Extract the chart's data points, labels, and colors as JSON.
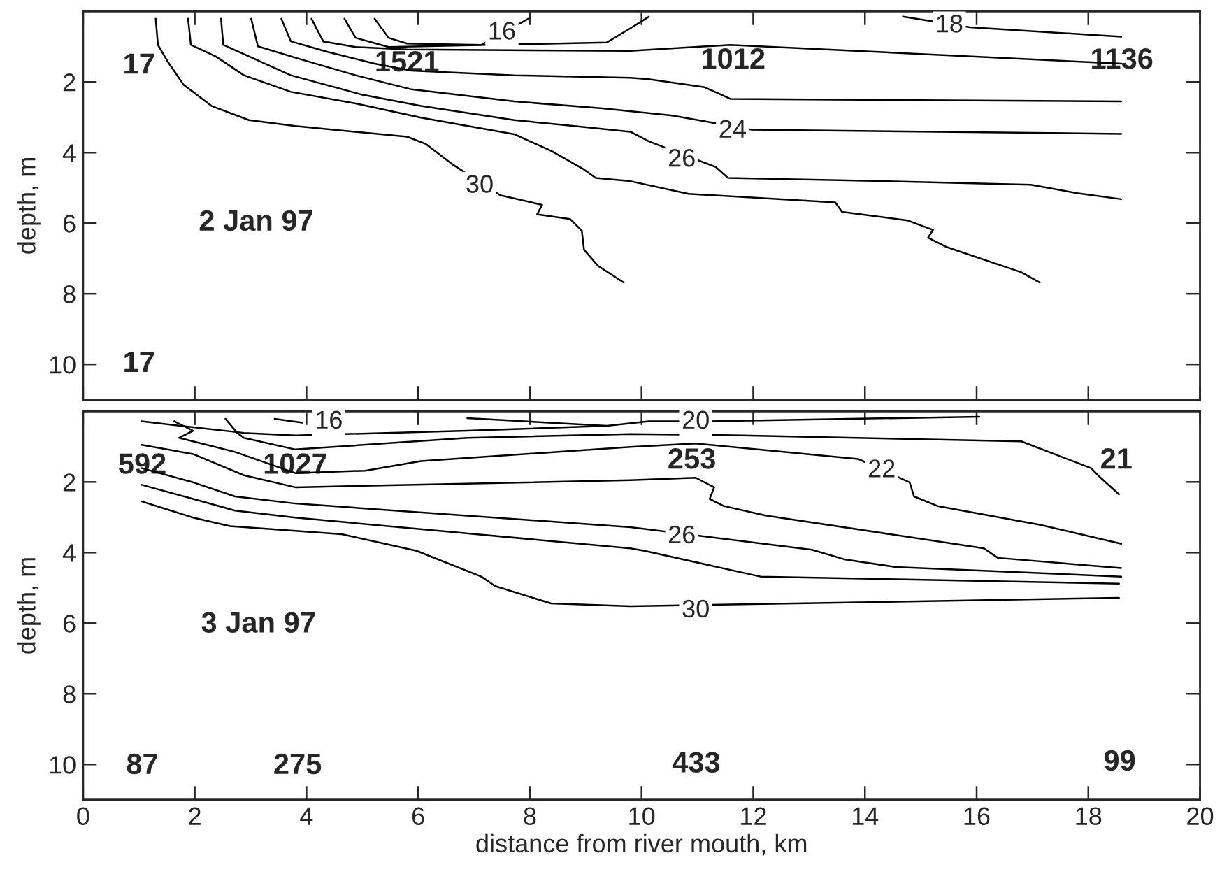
{
  "chart_data": [
    {
      "type": "line",
      "ylabel": "depth, m",
      "xlim": [
        0,
        20
      ],
      "xticks": [
        0,
        2,
        4,
        6,
        8,
        10,
        12,
        14,
        16,
        18,
        20
      ],
      "ylim": [
        11,
        0
      ],
      "yticks": [
        2,
        4,
        6,
        8,
        10
      ],
      "tick_labels": "y",
      "grid": false,
      "series": [
        {
          "color": "#000000",
          "x": [
            1.3,
            1.34,
            1.51,
            1.8,
            2.3,
            2.97,
            3.8,
            5.8,
            6.13,
            6.63,
            7.47,
            8.22,
            8.13,
            8.72,
            8.93,
            8.97,
            9.22,
            9.68
          ],
          "values": [
            0.21,
            0.95,
            1.41,
            2.08,
            2.68,
            3.08,
            3.25,
            3.55,
            3.75,
            4.35,
            5.21,
            5.48,
            5.75,
            5.88,
            6.21,
            6.75,
            7.21,
            7.68
          ]
        },
        {
          "color": "#000000",
          "x": [
            1.88,
            1.93,
            2.38,
            2.88,
            3.72,
            4.88,
            6.05,
            7.72,
            8.38,
            8.97,
            9.18,
            9.8,
            10.84,
            13.47,
            13.59,
            14.76,
            15.22,
            15.13,
            15.47,
            16.8,
            17.13
          ],
          "values": [
            0.21,
            0.95,
            1.28,
            1.81,
            2.28,
            2.61,
            3.01,
            3.48,
            3.95,
            4.48,
            4.72,
            4.81,
            5.17,
            5.41,
            5.68,
            5.92,
            6.19,
            6.41,
            6.68,
            7.39,
            7.68
          ]
        },
        {
          "color": "#000000",
          "x": [
            2.47,
            2.51,
            2.88,
            3.72,
            4.97,
            6.05,
            7.72,
            8.55,
            9.8,
            10.13,
            11.33,
            11.55,
            14.3,
            16.97,
            17.8,
            18.59
          ],
          "values": [
            0.21,
            0.95,
            1.21,
            1.81,
            2.35,
            2.68,
            3.08,
            3.21,
            3.41,
            3.68,
            4.41,
            4.72,
            4.81,
            4.91,
            5.15,
            5.32
          ]
        },
        {
          "color": "#000000",
          "x": [
            3.01,
            3.13,
            3.88,
            4.88,
            5.88,
            7.72,
            9.3,
            10.55,
            11.97,
            18.59
          ],
          "values": [
            0.21,
            0.99,
            1.35,
            1.81,
            2.21,
            2.55,
            2.75,
            2.95,
            3.35,
            3.47
          ]
        },
        {
          "color": "#000000",
          "x": [
            3.55,
            3.72,
            4.38,
            5.22,
            5.88,
            7.72,
            9.8,
            10.13,
            11.13,
            11.59,
            18.59
          ],
          "values": [
            0.21,
            0.85,
            1.15,
            1.48,
            1.68,
            1.81,
            1.88,
            1.92,
            2.15,
            2.48,
            2.55
          ]
        },
        {
          "color": "#000000",
          "x": [
            4.09,
            4.3,
            4.88,
            5.8,
            9.8,
            11.59,
            18.59
          ],
          "values": [
            0.21,
            0.85,
            1.01,
            1.08,
            1.12,
            0.95,
            1.48
          ]
        },
        {
          "color": "#000000",
          "x": [
            4.68,
            4.88,
            5.47,
            9.38,
            9.8,
            10.13
          ],
          "values": [
            0.21,
            0.75,
            1.01,
            0.88,
            0.48,
            0.15
          ]
        },
        {
          "color": "#000000",
          "x": [
            5.22,
            5.47,
            5.8,
            7.13,
            7.97
          ],
          "values": [
            0.21,
            0.75,
            0.91,
            0.95,
            0.21
          ]
        },
        {
          "color": "#000000",
          "x": [
            14.68,
            15.88,
            18.59
          ],
          "values": [
            0.15,
            0.45,
            0.72
          ]
        }
      ],
      "annotations": [
        {
          "text": "30",
          "x": 7.1,
          "y": 4.95
        },
        {
          "text": "26",
          "x": 10.72,
          "y": 4.21
        },
        {
          "text": "24",
          "x": 11.63,
          "y": 3.39
        },
        {
          "text": "16",
          "x": 7.5,
          "y": 0.61
        },
        {
          "text": "18",
          "x": 15.51,
          "y": 0.41
        },
        "17",
        "1521",
        "1012",
        "1136",
        "17",
        "2 Jan 97"
      ]
    },
    {
      "type": "line",
      "xlabel": "distance from river mouth, km",
      "ylabel": "depth, m",
      "xlim": [
        0,
        20
      ],
      "xticks": [
        0,
        2,
        4,
        6,
        8,
        10,
        12,
        14,
        16,
        18,
        20
      ],
      "ylim": [
        11,
        0
      ],
      "yticks": [
        2,
        4,
        6,
        8,
        10
      ],
      "grid": false,
      "series": [
        {
          "color": "#000000",
          "x": [
            3.43,
            3.93
          ],
          "values": [
            0.21,
            0.32
          ]
        },
        {
          "color": "#000000",
          "x": [
            6.88,
            9.38
          ],
          "values": [
            0.19,
            0.41
          ]
        },
        {
          "color": "#000000",
          "x": [
            1.05,
            1.97,
            2.88,
            3.8,
            6.88,
            9.38,
            10.13,
            11.22,
            16.05
          ],
          "values": [
            0.28,
            0.45,
            0.61,
            0.68,
            0.55,
            0.41,
            0.28,
            0.28,
            0.15
          ]
        },
        {
          "color": "#000000",
          "x": [
            2.55,
            2.76,
            2.88,
            3.8,
            6.88,
            9.8,
            11.8,
            16.8,
            18.05,
            18.22,
            18.55
          ],
          "values": [
            0.21,
            0.61,
            0.75,
            1.08,
            0.75,
            0.64,
            0.68,
            0.85,
            1.61,
            1.88,
            2.35
          ]
        },
        {
          "color": "#000000",
          "x": [
            1.63,
            1.97,
            1.72,
            2.72,
            3.8,
            5.05,
            6.05,
            9.8,
            10.97,
            13.88,
            14.8,
            14.88,
            15.3,
            17.13,
            18.59
          ],
          "values": [
            0.28,
            0.55,
            0.75,
            1.15,
            1.75,
            1.68,
            1.41,
            1.01,
            0.91,
            1.35,
            2.01,
            2.41,
            2.68,
            3.21,
            3.75
          ]
        },
        {
          "color": "#000000",
          "x": [
            1.05,
            1.97,
            2.88,
            3.8,
            9.8,
            10.97,
            11.3,
            11.22,
            11.47,
            12.22,
            16.13,
            16.38,
            18.59
          ],
          "values": [
            0.95,
            1.21,
            1.81,
            2.15,
            1.95,
            1.88,
            2.15,
            2.48,
            2.68,
            2.95,
            3.88,
            4.15,
            4.44
          ]
        },
        {
          "color": "#000000",
          "x": [
            1.05,
            1.97,
            2.72,
            3.8,
            9.8,
            13.05,
            13.63,
            14.55,
            18.59
          ],
          "values": [
            1.61,
            2.01,
            2.41,
            2.61,
            3.28,
            3.92,
            4.19,
            4.41,
            4.68
          ]
        },
        {
          "color": "#000000",
          "x": [
            1.05,
            1.97,
            2.72,
            3.8,
            9.8,
            10.05,
            12.13,
            18.55
          ],
          "values": [
            2.08,
            2.48,
            2.81,
            3.01,
            3.88,
            3.95,
            4.68,
            4.88
          ]
        },
        {
          "color": "#000000",
          "x": [
            1.05,
            1.97,
            2.63,
            4.63,
            5.97,
            7.13,
            7.38,
            8.38,
            9.8,
            18.55
          ],
          "values": [
            2.55,
            3.01,
            3.25,
            3.48,
            3.95,
            4.68,
            4.95,
            5.44,
            5.52,
            5.28
          ]
        }
      ],
      "annotations": [
        {
          "text": "16",
          "x": 4.4,
          "y": 0.3
        },
        {
          "text": "20",
          "x": 10.97,
          "y": 0.3
        },
        {
          "text": "22",
          "x": 14.3,
          "y": 1.68
        },
        {
          "text": "26",
          "x": 10.72,
          "y": 3.55
        },
        {
          "text": "30",
          "x": 10.97,
          "y": 5.65
        },
        "592",
        "1027",
        "253",
        "21",
        "87",
        "275",
        "433",
        "99",
        "3 Jan 97"
      ]
    }
  ]
}
